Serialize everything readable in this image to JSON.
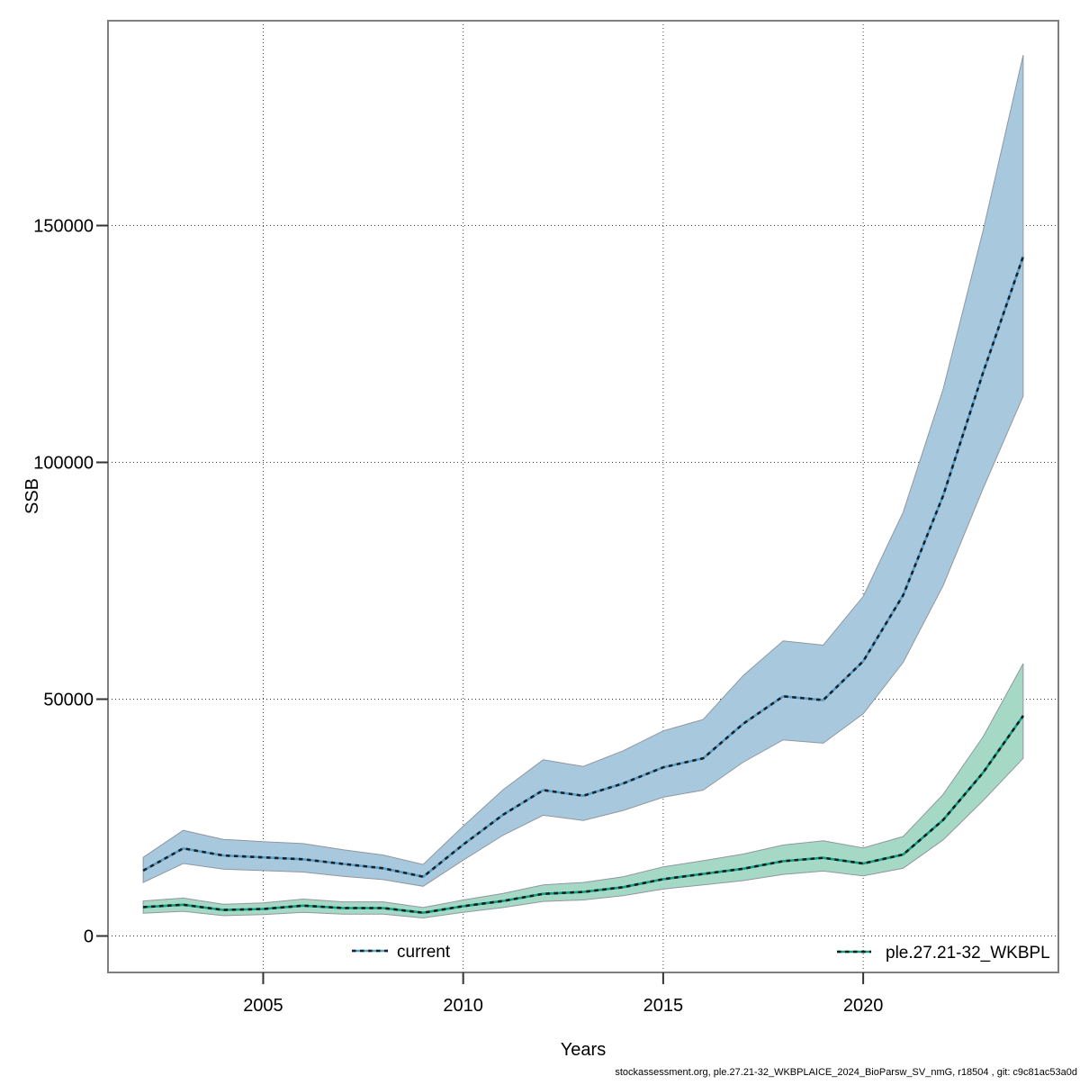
{
  "chart_data": {
    "type": "area",
    "title": "",
    "xlabel": "Years",
    "ylabel": "SSB",
    "footer": "stockassessment.org, ple.27.21-32_WKBPLAICE_2024_BioParsw_SV_nmG, r18504 , git: c9c81ac53a0d",
    "grid": "dotted",
    "legend_position": "bottom-inside",
    "xlim": [
      2001.12,
      2024.88
    ],
    "ylim": [
      -7700,
      193250
    ],
    "x_ticks": [
      2005,
      2010,
      2015,
      2020
    ],
    "x_tick_labels": [
      "2005",
      "2010",
      "2015",
      "2020"
    ],
    "y_ticks": [
      0,
      50000,
      100000,
      150000
    ],
    "y_tick_labels": [
      "0",
      "50000",
      "100000",
      "150000"
    ],
    "x": [
      2002,
      2003,
      2004,
      2005,
      2006,
      2007,
      2008,
      2009,
      2010,
      2011,
      2012,
      2013,
      2014,
      2015,
      2016,
      2017,
      2018,
      2019,
      2020,
      2021,
      2022,
      2023,
      2024
    ],
    "series": [
      {
        "name": "current",
        "fill_color": "#a8c9dd",
        "line_color": "#5b9fc6",
        "dash_color": "#16222b",
        "edge_color": "#9097a0",
        "median": [
          13800,
          18500,
          17000,
          16600,
          16200,
          15200,
          14300,
          12500,
          19300,
          25600,
          30800,
          29600,
          32200,
          35600,
          37500,
          44800,
          50600,
          49800,
          58000,
          72000,
          93000,
          119000,
          143500
        ],
        "low": [
          11300,
          15300,
          14100,
          13800,
          13500,
          12600,
          11900,
          10500,
          16000,
          21300,
          25500,
          24400,
          26500,
          29300,
          30800,
          36700,
          41400,
          40700,
          46900,
          57800,
          74000,
          94500,
          114000
        ],
        "high": [
          16600,
          22300,
          20400,
          19900,
          19500,
          18200,
          17100,
          15100,
          23200,
          30900,
          37200,
          35800,
          39100,
          43300,
          45700,
          55000,
          62300,
          61400,
          71700,
          89500,
          115500,
          149000,
          186000
        ]
      },
      {
        "name": "ple.27.21-32_WKBPL",
        "fill_color": "#a5d9c6",
        "line_color": "#149c84",
        "dash_color": "#0d201a",
        "edge_color": "#9097a0",
        "median": [
          6100,
          6600,
          5500,
          5700,
          6400,
          5900,
          5900,
          4900,
          6300,
          7400,
          8900,
          9300,
          10300,
          12000,
          13100,
          14200,
          15800,
          16500,
          15300,
          17200,
          24500,
          34500,
          46500
        ],
        "low": [
          4800,
          5200,
          4300,
          4500,
          5000,
          4600,
          4600,
          3800,
          5000,
          6000,
          7300,
          7600,
          8500,
          9900,
          10800,
          11700,
          13000,
          13700,
          12700,
          14300,
          20300,
          28600,
          37500
        ],
        "high": [
          7400,
          8000,
          6700,
          7000,
          7800,
          7200,
          7200,
          6000,
          7600,
          9000,
          10800,
          11300,
          12500,
          14600,
          15900,
          17300,
          19200,
          20100,
          18600,
          21000,
          29900,
          42100,
          57500
        ]
      }
    ],
    "frame_color": "#7f7f7f",
    "grid_color": "#3a3a3a"
  }
}
